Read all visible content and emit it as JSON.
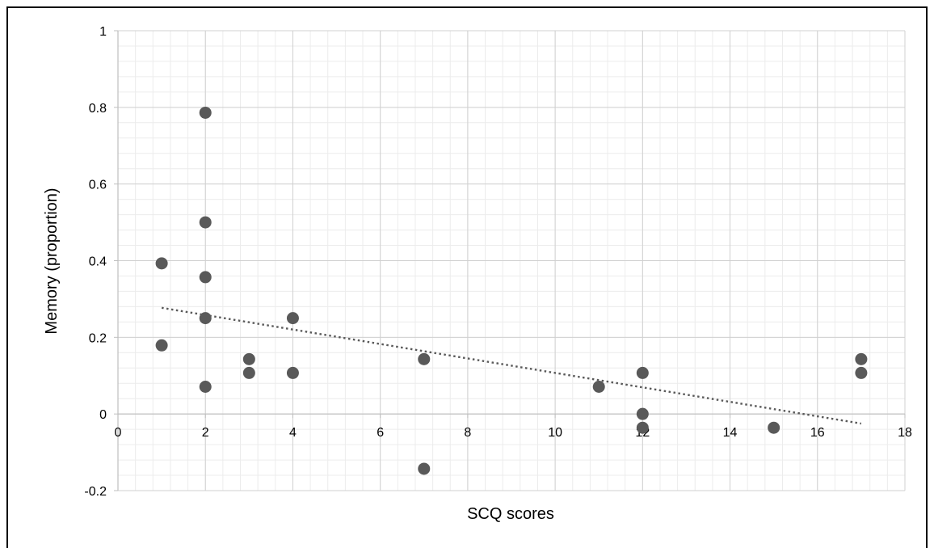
{
  "chart_data": {
    "type": "scatter",
    "title": "",
    "xlabel": "SCQ scores",
    "ylabel": "Memory (proportion)",
    "xlim": [
      0,
      18
    ],
    "ylim": [
      -0.2,
      1
    ],
    "x_ticks": [
      0,
      2,
      4,
      6,
      8,
      10,
      12,
      14,
      16,
      18
    ],
    "y_ticks": [
      -0.2,
      0,
      0.2,
      0.4,
      0.6,
      0.8,
      1
    ],
    "x_tick_labels": [
      "0",
      "2",
      "4",
      "6",
      "8",
      "10",
      "12",
      "14",
      "16",
      "18"
    ],
    "y_tick_labels": [
      "-0.2",
      "0",
      "0.2",
      "0.4",
      "0.6",
      "0.8",
      "1"
    ],
    "grid": true,
    "minor_grid": true,
    "legend": "none",
    "marker_color": "#595959",
    "trendline_color": "#595959",
    "series": [
      {
        "points": [
          {
            "x": 1,
            "y": 0.393
          },
          {
            "x": 1,
            "y": 0.179
          },
          {
            "x": 2,
            "y": 0.786
          },
          {
            "x": 2,
            "y": 0.5
          },
          {
            "x": 2,
            "y": 0.357
          },
          {
            "x": 2,
            "y": 0.25
          },
          {
            "x": 2,
            "y": 0.071
          },
          {
            "x": 3,
            "y": 0.143
          },
          {
            "x": 3,
            "y": 0.107
          },
          {
            "x": 4,
            "y": 0.25
          },
          {
            "x": 4,
            "y": 0.107
          },
          {
            "x": 7,
            "y": 0.143
          },
          {
            "x": 7,
            "y": -0.143
          },
          {
            "x": 11,
            "y": 0.071
          },
          {
            "x": 12,
            "y": 0.107
          },
          {
            "x": 12,
            "y": 0.0
          },
          {
            "x": 12,
            "y": -0.036
          },
          {
            "x": 15,
            "y": -0.036
          },
          {
            "x": 17,
            "y": 0.143
          },
          {
            "x": 17,
            "y": 0.107
          }
        ]
      }
    ],
    "trendline": {
      "type": "linear",
      "style": "dotted",
      "x": [
        1,
        17
      ],
      "y": [
        0.277,
        -0.025
      ]
    }
  }
}
